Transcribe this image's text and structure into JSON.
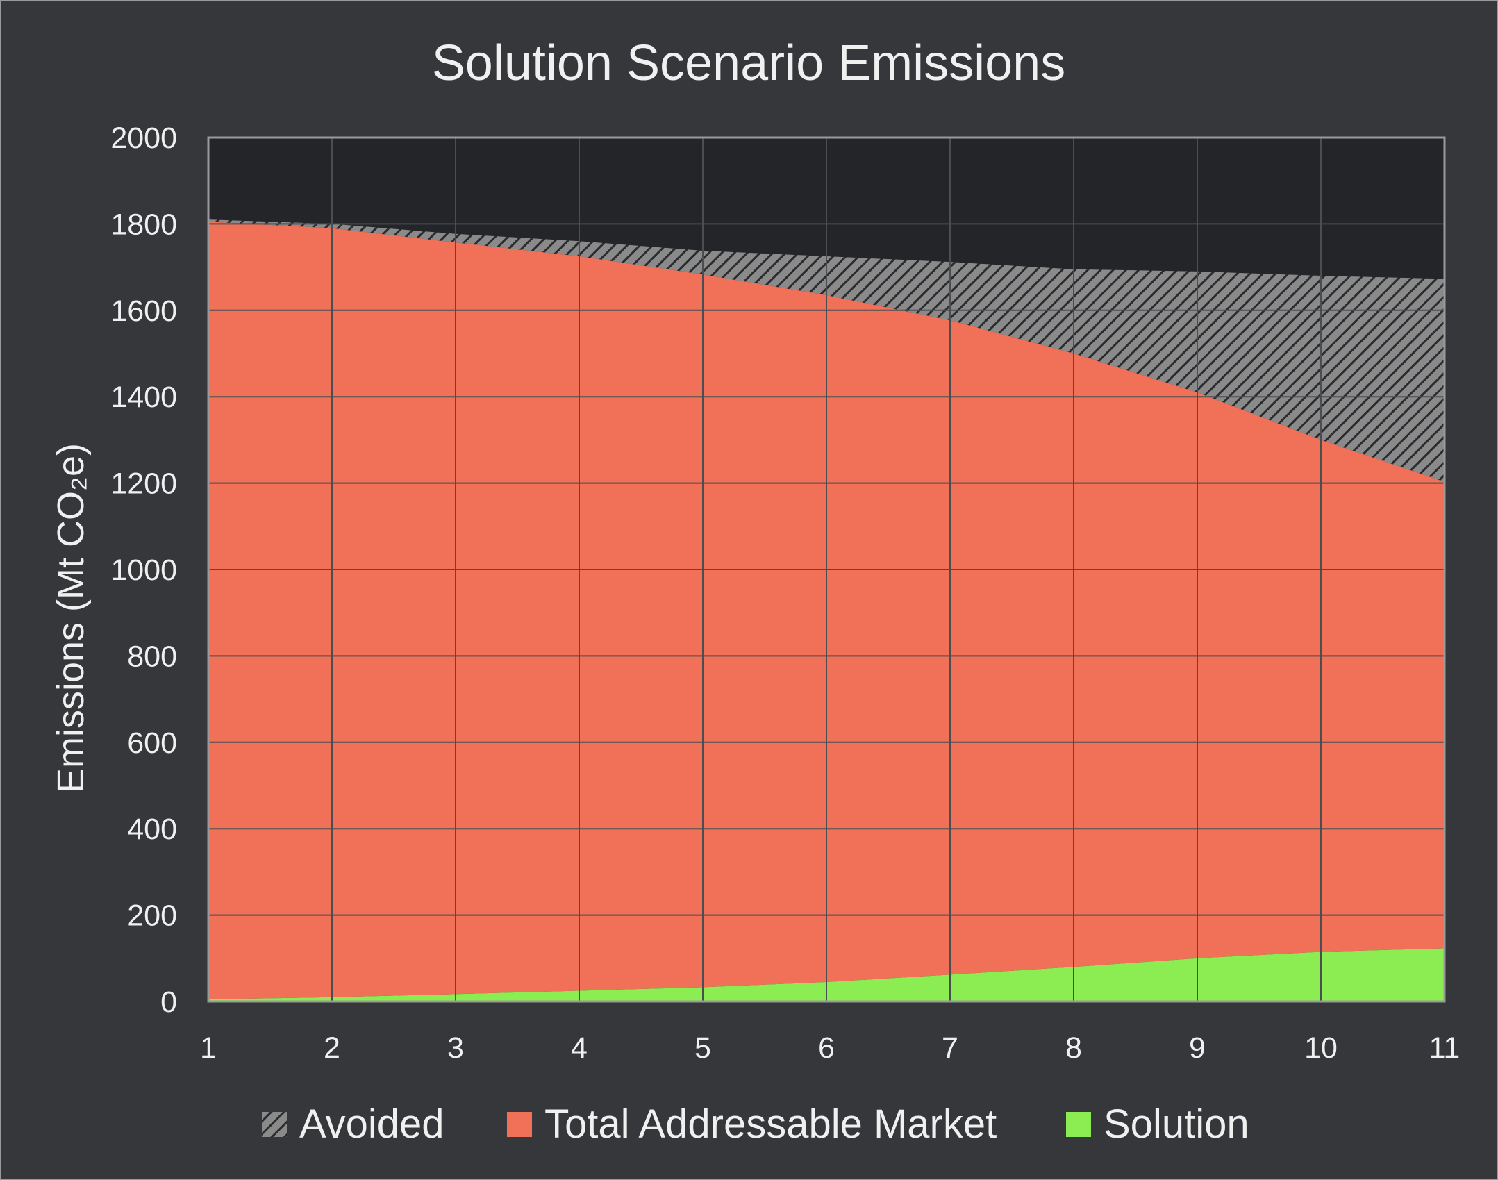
{
  "chart_data": {
    "type": "area",
    "title": "Solution Scenario Emissions",
    "xlabel": "",
    "ylabel": "Emissions (Mt CO₂e)",
    "x": [
      1,
      2,
      3,
      4,
      5,
      6,
      7,
      8,
      9,
      10,
      11
    ],
    "xlim": [
      1,
      11
    ],
    "ylim": [
      0,
      2000
    ],
    "yticks": [
      0,
      200,
      400,
      600,
      800,
      1000,
      1200,
      1400,
      1600,
      1800,
      2000
    ],
    "grid": true,
    "stacked": true,
    "legend_position": "bottom",
    "series": [
      {
        "name": "Avoided",
        "pattern": "hatched",
        "color": "#8a8a8a",
        "values": [
          5,
          10,
          20,
          35,
          55,
          90,
          135,
          195,
          280,
          380,
          470
        ]
      },
      {
        "name": "Total Addressable Market",
        "color": "#f07058",
        "values": [
          1800,
          1780,
          1740,
          1700,
          1650,
          1590,
          1515,
          1420,
          1310,
          1185,
          1080
        ]
      },
      {
        "name": "Solution",
        "color": "#8ced52",
        "values": [
          5,
          10,
          17,
          25,
          33,
          45,
          62,
          80,
          100,
          115,
          123
        ]
      }
    ],
    "colors": {
      "background": "#36373a",
      "plot_area": "#232528",
      "gridline": "#4a4d51",
      "axis_line": "#9a9a9a",
      "text": "#f0f0f0"
    }
  }
}
